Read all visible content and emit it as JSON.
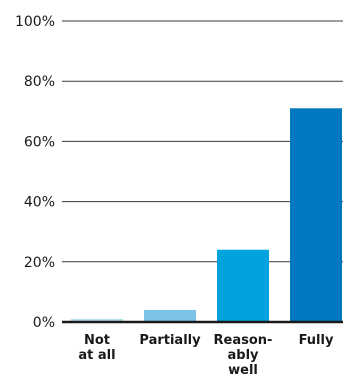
{
  "chart_data": {
    "type": "bar",
    "categories": [
      "Not at all",
      "Partially",
      "Reason-ably well",
      "Fully"
    ],
    "category_label_lines": [
      [
        "Not",
        "at all"
      ],
      [
        "Partially"
      ],
      [
        "Reason-",
        "ably",
        "well"
      ],
      [
        "Fully"
      ]
    ],
    "values": [
      1,
      4,
      24,
      71
    ],
    "bar_colors": [
      "#b3dff2",
      "#7cc3e8",
      "#00a3dd",
      "#0079c2"
    ],
    "ylim": [
      0,
      100
    ],
    "y_ticks": [
      0,
      20,
      40,
      60,
      80,
      100
    ],
    "y_tick_labels": [
      "0%",
      "20%",
      "40%",
      "60%",
      "80%",
      "100%"
    ],
    "grid": true,
    "title": "",
    "xlabel": "",
    "ylabel": ""
  }
}
